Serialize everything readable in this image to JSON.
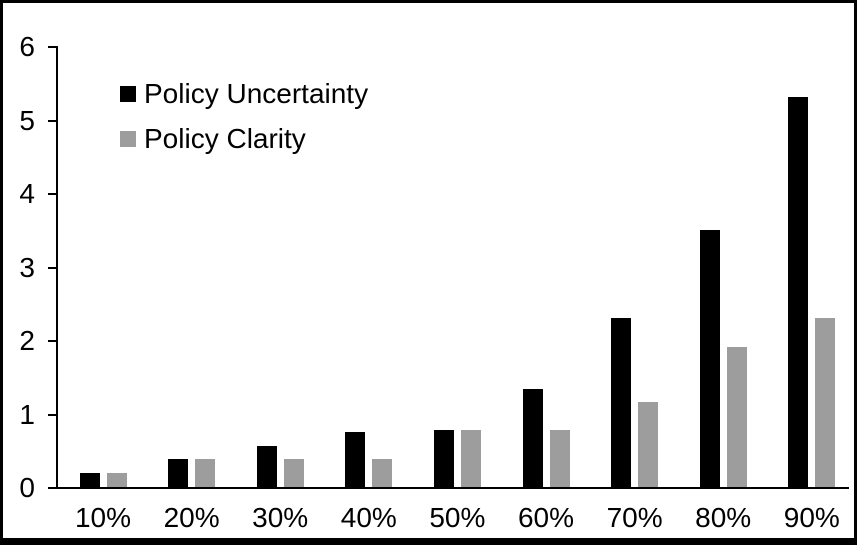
{
  "chart_data": {
    "type": "bar",
    "title": "",
    "xlabel": "",
    "ylabel": "",
    "categories": [
      "10%",
      "20%",
      "30%",
      "40%",
      "50%",
      "60%",
      "70%",
      "80%",
      "90%"
    ],
    "series": [
      {
        "name": "Policy Uncertainty",
        "color": "#000000",
        "values": [
          0.19,
          0.38,
          0.56,
          0.75,
          0.77,
          1.33,
          2.3,
          3.5,
          5.3
        ]
      },
      {
        "name": "Policy Clarity",
        "color": "#9d9d9d",
        "values": [
          0.19,
          0.38,
          0.38,
          0.38,
          0.77,
          0.77,
          1.15,
          1.9,
          2.3
        ]
      }
    ],
    "ylim": [
      0,
      6
    ],
    "yticks": [
      0,
      1,
      2,
      3,
      4,
      5,
      6
    ],
    "ytick_labels": [
      "0",
      "1",
      "2",
      "3",
      "4",
      "5",
      "6"
    ],
    "grid": false,
    "legend_position": "inside-top-left",
    "axis_color": "#000000",
    "background_color": "#ffffff",
    "frame_border_color": "#000000"
  }
}
